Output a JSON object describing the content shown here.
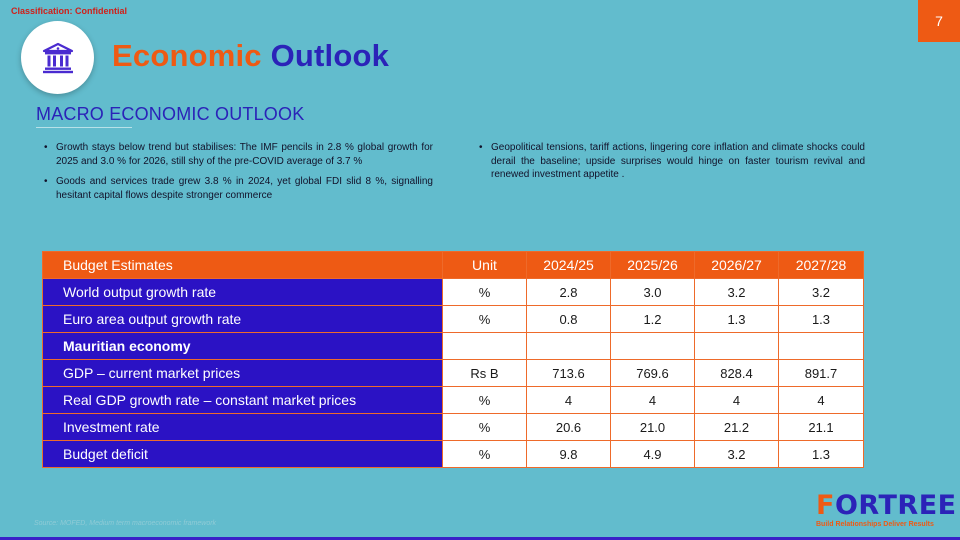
{
  "header": {
    "classification": "Classification: Confidential",
    "page_number": "7",
    "title_part1": "Economic",
    "title_part2": "Outlook",
    "icon": "bank-building-icon"
  },
  "section": {
    "heading": "MACRO ECONOMIC OUTLOOK"
  },
  "bullets_left": [
    "Growth stays below trend but stabilises: The IMF pencils in 2.8 % global growth for 2025 and 3.0 % for 2026, still shy of the pre-COVID average of 3.7 %",
    "Goods and services trade grew 3.8 % in 2024, yet global FDI slid 8 %, signalling hesitant capital flows despite stronger commerce"
  ],
  "bullets_right": [
    "Geopolitical tensions, tariff actions, lingering core inflation and climate shocks could derail the baseline; upside surprises would hinge on faster tourism revival and renewed investment appetite ."
  ],
  "table": {
    "headers": [
      "Budget Estimates",
      "Unit",
      "2024/25",
      "2025/26",
      "2026/27",
      "2027/28"
    ],
    "rows": [
      [
        "World output growth rate",
        "%",
        "2.8",
        "3.0",
        "3.2",
        "3.2"
      ],
      [
        "Euro area output growth rate",
        "%",
        "0.8",
        "1.2",
        "1.3",
        "1.3"
      ],
      [
        "Mauritian economy",
        "",
        "",
        "",
        "",
        ""
      ],
      [
        "GDP – current market prices",
        "Rs B",
        "713.6",
        "769.6",
        "828.4",
        "891.7"
      ],
      [
        "Real GDP growth rate – constant market prices",
        "%",
        "4",
        "4",
        "4",
        "4"
      ],
      [
        "Investment rate",
        "%",
        "20.6",
        "21.0",
        "21.2",
        "21.1"
      ],
      [
        "Budget deficit",
        "%",
        "9.8",
        "4.9",
        "3.2",
        "1.3"
      ]
    ]
  },
  "footer": {
    "source": "Source: MOFED, Medium term macroeconomic framework",
    "brand_first": "F",
    "brand_rest": "ORTREE",
    "tagline": "Build Relationships Deliver Results"
  },
  "colors": {
    "background": "#62bccd",
    "accent_orange": "#ee5a14",
    "accent_blue": "#2b23b8"
  }
}
